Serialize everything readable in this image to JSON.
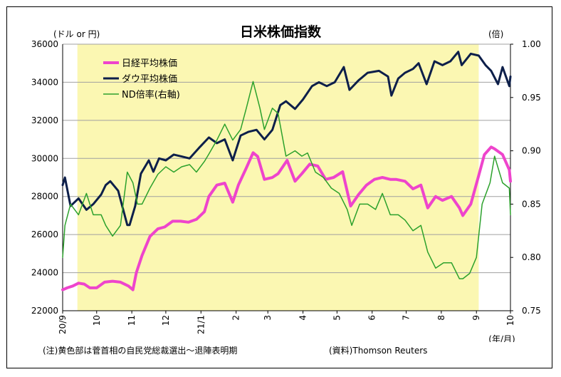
{
  "note_left": "(注)黄色部は菅首相の自民党総裁選出～退陣表明期",
  "note_right": "(資料)Thomson Reuters",
  "colors": {
    "nikkei": "#ee44cc",
    "dow": "#0d1f4a",
    "ratio": "#2ca12c",
    "highlight": "#fbf7b2",
    "grid": "#a0a0a0"
  },
  "chart_data": {
    "type": "line",
    "title": "日米株価指数",
    "left_axis_label": "(ドル or 円)",
    "right_axis_label": "(倍)",
    "x_axis_label": "(年/月)",
    "y_left": {
      "min": 22000,
      "max": 36000,
      "ticks": [
        22000,
        24000,
        26000,
        28000,
        30000,
        32000,
        34000,
        36000
      ]
    },
    "y_right": {
      "min": 0.75,
      "max": 1.0,
      "ticks": [
        "0.75",
        "0.80",
        "0.85",
        "0.90",
        "0.95",
        "1.00"
      ]
    },
    "x_ticks": [
      "20/9",
      "10",
      "11",
      "12",
      "21/1",
      "2",
      "3",
      "4",
      "5",
      "6",
      "7",
      "8",
      "9",
      "10"
    ],
    "x_tick_dates": [
      "2020-09",
      "2020-10",
      "2020-11",
      "2020-12",
      "2021-01",
      "2021-02",
      "2021-03",
      "2021-04",
      "2021-05",
      "2021-06",
      "2021-07",
      "2021-08",
      "2021-09",
      "2021-10"
    ],
    "highlight_period": [
      "2020-09-14",
      "2021-09-03"
    ],
    "grid": true,
    "legend_position": "top-left",
    "series": [
      {
        "name": "日経平均株価",
        "axis": "left",
        "points": [
          [
            "2020-09-01",
            23100
          ],
          [
            "2020-09-05",
            23200
          ],
          [
            "2020-09-10",
            23300
          ],
          [
            "2020-09-15",
            23450
          ],
          [
            "2020-09-20",
            23400
          ],
          [
            "2020-09-25",
            23200
          ],
          [
            "2020-10-01",
            23200
          ],
          [
            "2020-10-08",
            23500
          ],
          [
            "2020-10-15",
            23550
          ],
          [
            "2020-10-22",
            23500
          ],
          [
            "2020-10-29",
            23300
          ],
          [
            "2020-11-02",
            23100
          ],
          [
            "2020-11-05",
            24000
          ],
          [
            "2020-11-10",
            24900
          ],
          [
            "2020-11-17",
            25900
          ],
          [
            "2020-11-24",
            26300
          ],
          [
            "2020-11-30",
            26400
          ],
          [
            "2020-12-07",
            26700
          ],
          [
            "2020-12-14",
            26700
          ],
          [
            "2020-12-21",
            26650
          ],
          [
            "2020-12-28",
            26800
          ],
          [
            "2021-01-04",
            27200
          ],
          [
            "2021-01-08",
            28000
          ],
          [
            "2021-01-15",
            28600
          ],
          [
            "2021-01-22",
            28700
          ],
          [
            "2021-01-29",
            27700
          ],
          [
            "2021-02-03",
            28600
          ],
          [
            "2021-02-10",
            29500
          ],
          [
            "2021-02-16",
            30300
          ],
          [
            "2021-02-20",
            30100
          ],
          [
            "2021-02-26",
            28900
          ],
          [
            "2021-03-05",
            29000
          ],
          [
            "2021-03-10",
            29200
          ],
          [
            "2021-03-18",
            29900
          ],
          [
            "2021-03-25",
            28800
          ],
          [
            "2021-03-31",
            29200
          ],
          [
            "2021-04-07",
            29700
          ],
          [
            "2021-04-14",
            29600
          ],
          [
            "2021-04-21",
            28900
          ],
          [
            "2021-04-28",
            29000
          ],
          [
            "2021-05-06",
            29300
          ],
          [
            "2021-05-13",
            27500
          ],
          [
            "2021-05-20",
            28100
          ],
          [
            "2021-05-27",
            28600
          ],
          [
            "2021-06-03",
            28900
          ],
          [
            "2021-06-10",
            29000
          ],
          [
            "2021-06-17",
            28900
          ],
          [
            "2021-06-22",
            28900
          ],
          [
            "2021-06-30",
            28800
          ],
          [
            "2021-07-07",
            28400
          ],
          [
            "2021-07-14",
            28600
          ],
          [
            "2021-07-20",
            27400
          ],
          [
            "2021-07-27",
            28000
          ],
          [
            "2021-08-02",
            27800
          ],
          [
            "2021-08-10",
            28000
          ],
          [
            "2021-08-17",
            27400
          ],
          [
            "2021-08-20",
            27000
          ],
          [
            "2021-08-27",
            27600
          ],
          [
            "2021-09-03",
            29100
          ],
          [
            "2021-09-08",
            30200
          ],
          [
            "2021-09-14",
            30600
          ],
          [
            "2021-09-17",
            30500
          ],
          [
            "2021-09-24",
            30200
          ],
          [
            "2021-09-30",
            29400
          ],
          [
            "2021-10-01",
            28800
          ]
        ]
      },
      {
        "name": "ダウ平均株価",
        "axis": "left",
        "points": [
          [
            "2020-09-01",
            28600
          ],
          [
            "2020-09-03",
            29000
          ],
          [
            "2020-09-08",
            27500
          ],
          [
            "2020-09-15",
            27900
          ],
          [
            "2020-09-22",
            27300
          ],
          [
            "2020-09-28",
            27600
          ],
          [
            "2020-10-05",
            28100
          ],
          [
            "2020-10-09",
            28600
          ],
          [
            "2020-10-13",
            28800
          ],
          [
            "2020-10-20",
            28300
          ],
          [
            "2020-10-28",
            26500
          ],
          [
            "2020-10-30",
            26500
          ],
          [
            "2020-11-04",
            27500
          ],
          [
            "2020-11-09",
            29200
          ],
          [
            "2020-11-16",
            29900
          ],
          [
            "2020-11-20",
            29300
          ],
          [
            "2020-11-25",
            30000
          ],
          [
            "2020-12-01",
            29900
          ],
          [
            "2020-12-08",
            30200
          ],
          [
            "2020-12-15",
            30100
          ],
          [
            "2020-12-22",
            30000
          ],
          [
            "2020-12-31",
            30600
          ],
          [
            "2021-01-08",
            31100
          ],
          [
            "2021-01-15",
            30800
          ],
          [
            "2021-01-22",
            31000
          ],
          [
            "2021-01-29",
            29900
          ],
          [
            "2021-02-05",
            31200
          ],
          [
            "2021-02-12",
            31400
          ],
          [
            "2021-02-19",
            31500
          ],
          [
            "2021-02-26",
            31000
          ],
          [
            "2021-03-05",
            31500
          ],
          [
            "2021-03-12",
            32800
          ],
          [
            "2021-03-17",
            33000
          ],
          [
            "2021-03-25",
            32600
          ],
          [
            "2021-04-01",
            33100
          ],
          [
            "2021-04-09",
            33800
          ],
          [
            "2021-04-15",
            34000
          ],
          [
            "2021-04-22",
            33800
          ],
          [
            "2021-04-29",
            34000
          ],
          [
            "2021-05-07",
            34800
          ],
          [
            "2021-05-12",
            33600
          ],
          [
            "2021-05-20",
            34100
          ],
          [
            "2021-05-28",
            34500
          ],
          [
            "2021-06-07",
            34600
          ],
          [
            "2021-06-15",
            34300
          ],
          [
            "2021-06-18",
            33300
          ],
          [
            "2021-06-24",
            34200
          ],
          [
            "2021-06-30",
            34500
          ],
          [
            "2021-07-07",
            34700
          ],
          [
            "2021-07-12",
            35000
          ],
          [
            "2021-07-19",
            33900
          ],
          [
            "2021-07-26",
            35100
          ],
          [
            "2021-08-02",
            34900
          ],
          [
            "2021-08-09",
            35100
          ],
          [
            "2021-08-16",
            35600
          ],
          [
            "2021-08-19",
            34900
          ],
          [
            "2021-08-27",
            35500
          ],
          [
            "2021-09-03",
            35400
          ],
          [
            "2021-09-09",
            34900
          ],
          [
            "2021-09-14",
            34600
          ],
          [
            "2021-09-20",
            33900
          ],
          [
            "2021-09-24",
            34800
          ],
          [
            "2021-09-30",
            33800
          ],
          [
            "2021-10-01",
            34300
          ]
        ]
      },
      {
        "name": "ND倍率(右軸)",
        "axis": "right",
        "points": [
          [
            "2020-09-01",
            0.8
          ],
          [
            "2020-09-03",
            0.83
          ],
          [
            "2020-09-08",
            0.85
          ],
          [
            "2020-09-15",
            0.84
          ],
          [
            "2020-09-22",
            0.86
          ],
          [
            "2020-09-28",
            0.84
          ],
          [
            "2020-10-05",
            0.84
          ],
          [
            "2020-10-09",
            0.83
          ],
          [
            "2020-10-15",
            0.82
          ],
          [
            "2020-10-22",
            0.83
          ],
          [
            "2020-10-28",
            0.88
          ],
          [
            "2020-11-02",
            0.87
          ],
          [
            "2020-11-06",
            0.85
          ],
          [
            "2020-11-10",
            0.85
          ],
          [
            "2020-11-17",
            0.865
          ],
          [
            "2020-11-24",
            0.878
          ],
          [
            "2020-12-01",
            0.885
          ],
          [
            "2020-12-08",
            0.88
          ],
          [
            "2020-12-15",
            0.885
          ],
          [
            "2020-12-22",
            0.887
          ],
          [
            "2020-12-28",
            0.88
          ],
          [
            "2021-01-04",
            0.89
          ],
          [
            "2021-01-08",
            0.897
          ],
          [
            "2021-01-15",
            0.91
          ],
          [
            "2021-01-22",
            0.925
          ],
          [
            "2021-01-29",
            0.91
          ],
          [
            "2021-02-05",
            0.92
          ],
          [
            "2021-02-10",
            0.94
          ],
          [
            "2021-02-16",
            0.965
          ],
          [
            "2021-02-22",
            0.94
          ],
          [
            "2021-02-26",
            0.92
          ],
          [
            "2021-03-05",
            0.94
          ],
          [
            "2021-03-10",
            0.935
          ],
          [
            "2021-03-17",
            0.895
          ],
          [
            "2021-03-25",
            0.9
          ],
          [
            "2021-03-31",
            0.895
          ],
          [
            "2021-04-05",
            0.898
          ],
          [
            "2021-04-12",
            0.88
          ],
          [
            "2021-04-19",
            0.875
          ],
          [
            "2021-04-26",
            0.865
          ],
          [
            "2021-05-03",
            0.86
          ],
          [
            "2021-05-10",
            0.845
          ],
          [
            "2021-05-14",
            0.83
          ],
          [
            "2021-05-21",
            0.85
          ],
          [
            "2021-05-28",
            0.85
          ],
          [
            "2021-06-04",
            0.845
          ],
          [
            "2021-06-10",
            0.86
          ],
          [
            "2021-06-17",
            0.84
          ],
          [
            "2021-06-24",
            0.84
          ],
          [
            "2021-06-30",
            0.835
          ],
          [
            "2021-07-07",
            0.825
          ],
          [
            "2021-07-14",
            0.83
          ],
          [
            "2021-07-20",
            0.805
          ],
          [
            "2021-07-27",
            0.79
          ],
          [
            "2021-08-03",
            0.795
          ],
          [
            "2021-08-10",
            0.795
          ],
          [
            "2021-08-17",
            0.78
          ],
          [
            "2021-08-20",
            0.78
          ],
          [
            "2021-08-26",
            0.785
          ],
          [
            "2021-09-01",
            0.8
          ],
          [
            "2021-09-06",
            0.85
          ],
          [
            "2021-09-13",
            0.87
          ],
          [
            "2021-09-17",
            0.895
          ],
          [
            "2021-09-24",
            0.87
          ],
          [
            "2021-09-30",
            0.865
          ],
          [
            "2021-10-01",
            0.84
          ]
        ]
      }
    ]
  }
}
